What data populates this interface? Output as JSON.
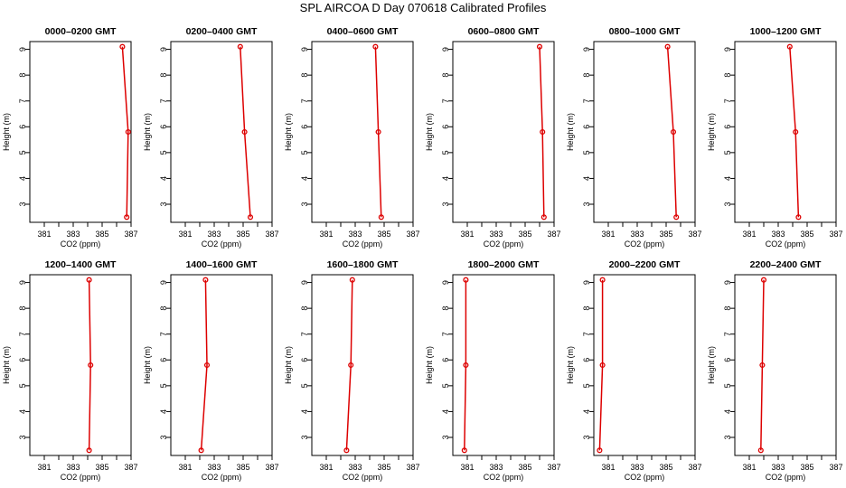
{
  "title": "SPL AIRCOA D  Day 070618  Calibrated Profiles",
  "colors": {
    "series": "#dd0000",
    "axis": "#000000"
  },
  "chart_data": [
    {
      "type": "line",
      "title": "0000–0200 GMT",
      "xlabel": "CO2 (ppm)",
      "ylabel": "Height (m)",
      "xlim": [
        380,
        387
      ],
      "ylim": [
        2.3,
        9.3
      ],
      "x_ticks": [
        381,
        383,
        385,
        387
      ],
      "y_ticks": [
        3,
        4,
        5,
        6,
        7,
        8,
        9
      ],
      "series": [
        {
          "x": [
            386.7,
            386.8,
            386.4
          ],
          "y": [
            2.5,
            5.8,
            9.1
          ]
        }
      ]
    },
    {
      "type": "line",
      "title": "0200–0400 GMT",
      "xlabel": "CO2 (ppm)",
      "ylabel": "Height (m)",
      "xlim": [
        380,
        387
      ],
      "ylim": [
        2.3,
        9.3
      ],
      "x_ticks": [
        381,
        383,
        385,
        387
      ],
      "y_ticks": [
        3,
        4,
        5,
        6,
        7,
        8,
        9
      ],
      "series": [
        {
          "x": [
            385.5,
            385.1,
            384.8
          ],
          "y": [
            2.5,
            5.8,
            9.1
          ]
        }
      ]
    },
    {
      "type": "line",
      "title": "0400–0600 GMT",
      "xlabel": "CO2 (ppm)",
      "ylabel": "Height (m)",
      "xlim": [
        380,
        387
      ],
      "ylim": [
        2.3,
        9.3
      ],
      "x_ticks": [
        381,
        383,
        385,
        387
      ],
      "y_ticks": [
        3,
        4,
        5,
        6,
        7,
        8,
        9
      ],
      "series": [
        {
          "x": [
            384.8,
            384.6,
            384.4
          ],
          "y": [
            2.5,
            5.8,
            9.1
          ]
        }
      ]
    },
    {
      "type": "line",
      "title": "0600–0800 GMT",
      "xlabel": "CO2 (ppm)",
      "ylabel": "Height (m)",
      "xlim": [
        380,
        387
      ],
      "ylim": [
        2.3,
        9.3
      ],
      "x_ticks": [
        381,
        383,
        385,
        387
      ],
      "y_ticks": [
        3,
        4,
        5,
        6,
        7,
        8,
        9
      ],
      "series": [
        {
          "x": [
            386.3,
            386.2,
            386.0
          ],
          "y": [
            2.5,
            5.8,
            9.1
          ]
        }
      ]
    },
    {
      "type": "line",
      "title": "0800–1000 GMT",
      "xlabel": "CO2 (ppm)",
      "ylabel": "Height (m)",
      "xlim": [
        380,
        387
      ],
      "ylim": [
        2.3,
        9.3
      ],
      "x_ticks": [
        381,
        383,
        385,
        387
      ],
      "y_ticks": [
        3,
        4,
        5,
        6,
        7,
        8,
        9
      ],
      "series": [
        {
          "x": [
            385.7,
            385.5,
            385.1
          ],
          "y": [
            2.5,
            5.8,
            9.1
          ]
        }
      ]
    },
    {
      "type": "line",
      "title": "1000–1200 GMT",
      "xlabel": "CO2 (ppm)",
      "ylabel": "Height (m)",
      "xlim": [
        380,
        387
      ],
      "ylim": [
        2.3,
        9.3
      ],
      "x_ticks": [
        381,
        383,
        385,
        387
      ],
      "y_ticks": [
        3,
        4,
        5,
        6,
        7,
        8,
        9
      ],
      "series": [
        {
          "x": [
            384.4,
            384.2,
            383.8
          ],
          "y": [
            2.5,
            5.8,
            9.1
          ]
        }
      ]
    },
    {
      "type": "line",
      "title": "1200–1400 GMT",
      "xlabel": "CO2 (ppm)",
      "ylabel": "Height (m)",
      "xlim": [
        380,
        387
      ],
      "ylim": [
        2.3,
        9.3
      ],
      "x_ticks": [
        381,
        383,
        385,
        387
      ],
      "y_ticks": [
        3,
        4,
        5,
        6,
        7,
        8,
        9
      ],
      "series": [
        {
          "x": [
            384.1,
            384.2,
            384.1
          ],
          "y": [
            2.5,
            5.8,
            9.1
          ]
        }
      ]
    },
    {
      "type": "line",
      "title": "1400–1600 GMT",
      "xlabel": "CO2 (ppm)",
      "ylabel": "Height (m)",
      "xlim": [
        380,
        387
      ],
      "ylim": [
        2.3,
        9.3
      ],
      "x_ticks": [
        381,
        383,
        385,
        387
      ],
      "y_ticks": [
        3,
        4,
        5,
        6,
        7,
        8,
        9
      ],
      "series": [
        {
          "x": [
            382.1,
            382.5,
            382.4
          ],
          "y": [
            2.5,
            5.8,
            9.1
          ]
        }
      ]
    },
    {
      "type": "line",
      "title": "1600–1800 GMT",
      "xlabel": "CO2 (ppm)",
      "ylabel": "Height (m)",
      "xlim": [
        380,
        387
      ],
      "ylim": [
        2.3,
        9.3
      ],
      "x_ticks": [
        381,
        383,
        385,
        387
      ],
      "y_ticks": [
        3,
        4,
        5,
        6,
        7,
        8,
        9
      ],
      "series": [
        {
          "x": [
            382.4,
            382.7,
            382.8
          ],
          "y": [
            2.5,
            5.8,
            9.1
          ]
        }
      ]
    },
    {
      "type": "line",
      "title": "1800–2000 GMT",
      "xlabel": "CO2 (ppm)",
      "ylabel": "Height (m)",
      "xlim": [
        380,
        387
      ],
      "ylim": [
        2.3,
        9.3
      ],
      "x_ticks": [
        381,
        383,
        385,
        387
      ],
      "y_ticks": [
        3,
        4,
        5,
        6,
        7,
        8,
        9
      ],
      "series": [
        {
          "x": [
            380.8,
            380.9,
            380.9
          ],
          "y": [
            2.5,
            5.8,
            9.1
          ]
        }
      ]
    },
    {
      "type": "line",
      "title": "2000–2200 GMT",
      "xlabel": "CO2 (ppm)",
      "ylabel": "Height (m)",
      "xlim": [
        380,
        387
      ],
      "ylim": [
        2.3,
        9.3
      ],
      "x_ticks": [
        381,
        383,
        385,
        387
      ],
      "y_ticks": [
        3,
        4,
        5,
        6,
        7,
        8,
        9
      ],
      "series": [
        {
          "x": [
            380.4,
            380.6,
            380.6
          ],
          "y": [
            2.5,
            5.8,
            9.1
          ]
        }
      ]
    },
    {
      "type": "line",
      "title": "2200–2400 GMT",
      "xlabel": "CO2 (ppm)",
      "ylabel": "Height (m)",
      "xlim": [
        380,
        387
      ],
      "ylim": [
        2.3,
        9.3
      ],
      "x_ticks": [
        381,
        383,
        385,
        387
      ],
      "y_ticks": [
        3,
        4,
        5,
        6,
        7,
        8,
        9
      ],
      "series": [
        {
          "x": [
            381.8,
            381.9,
            382.0
          ],
          "y": [
            2.5,
            5.8,
            9.1
          ]
        }
      ]
    }
  ]
}
